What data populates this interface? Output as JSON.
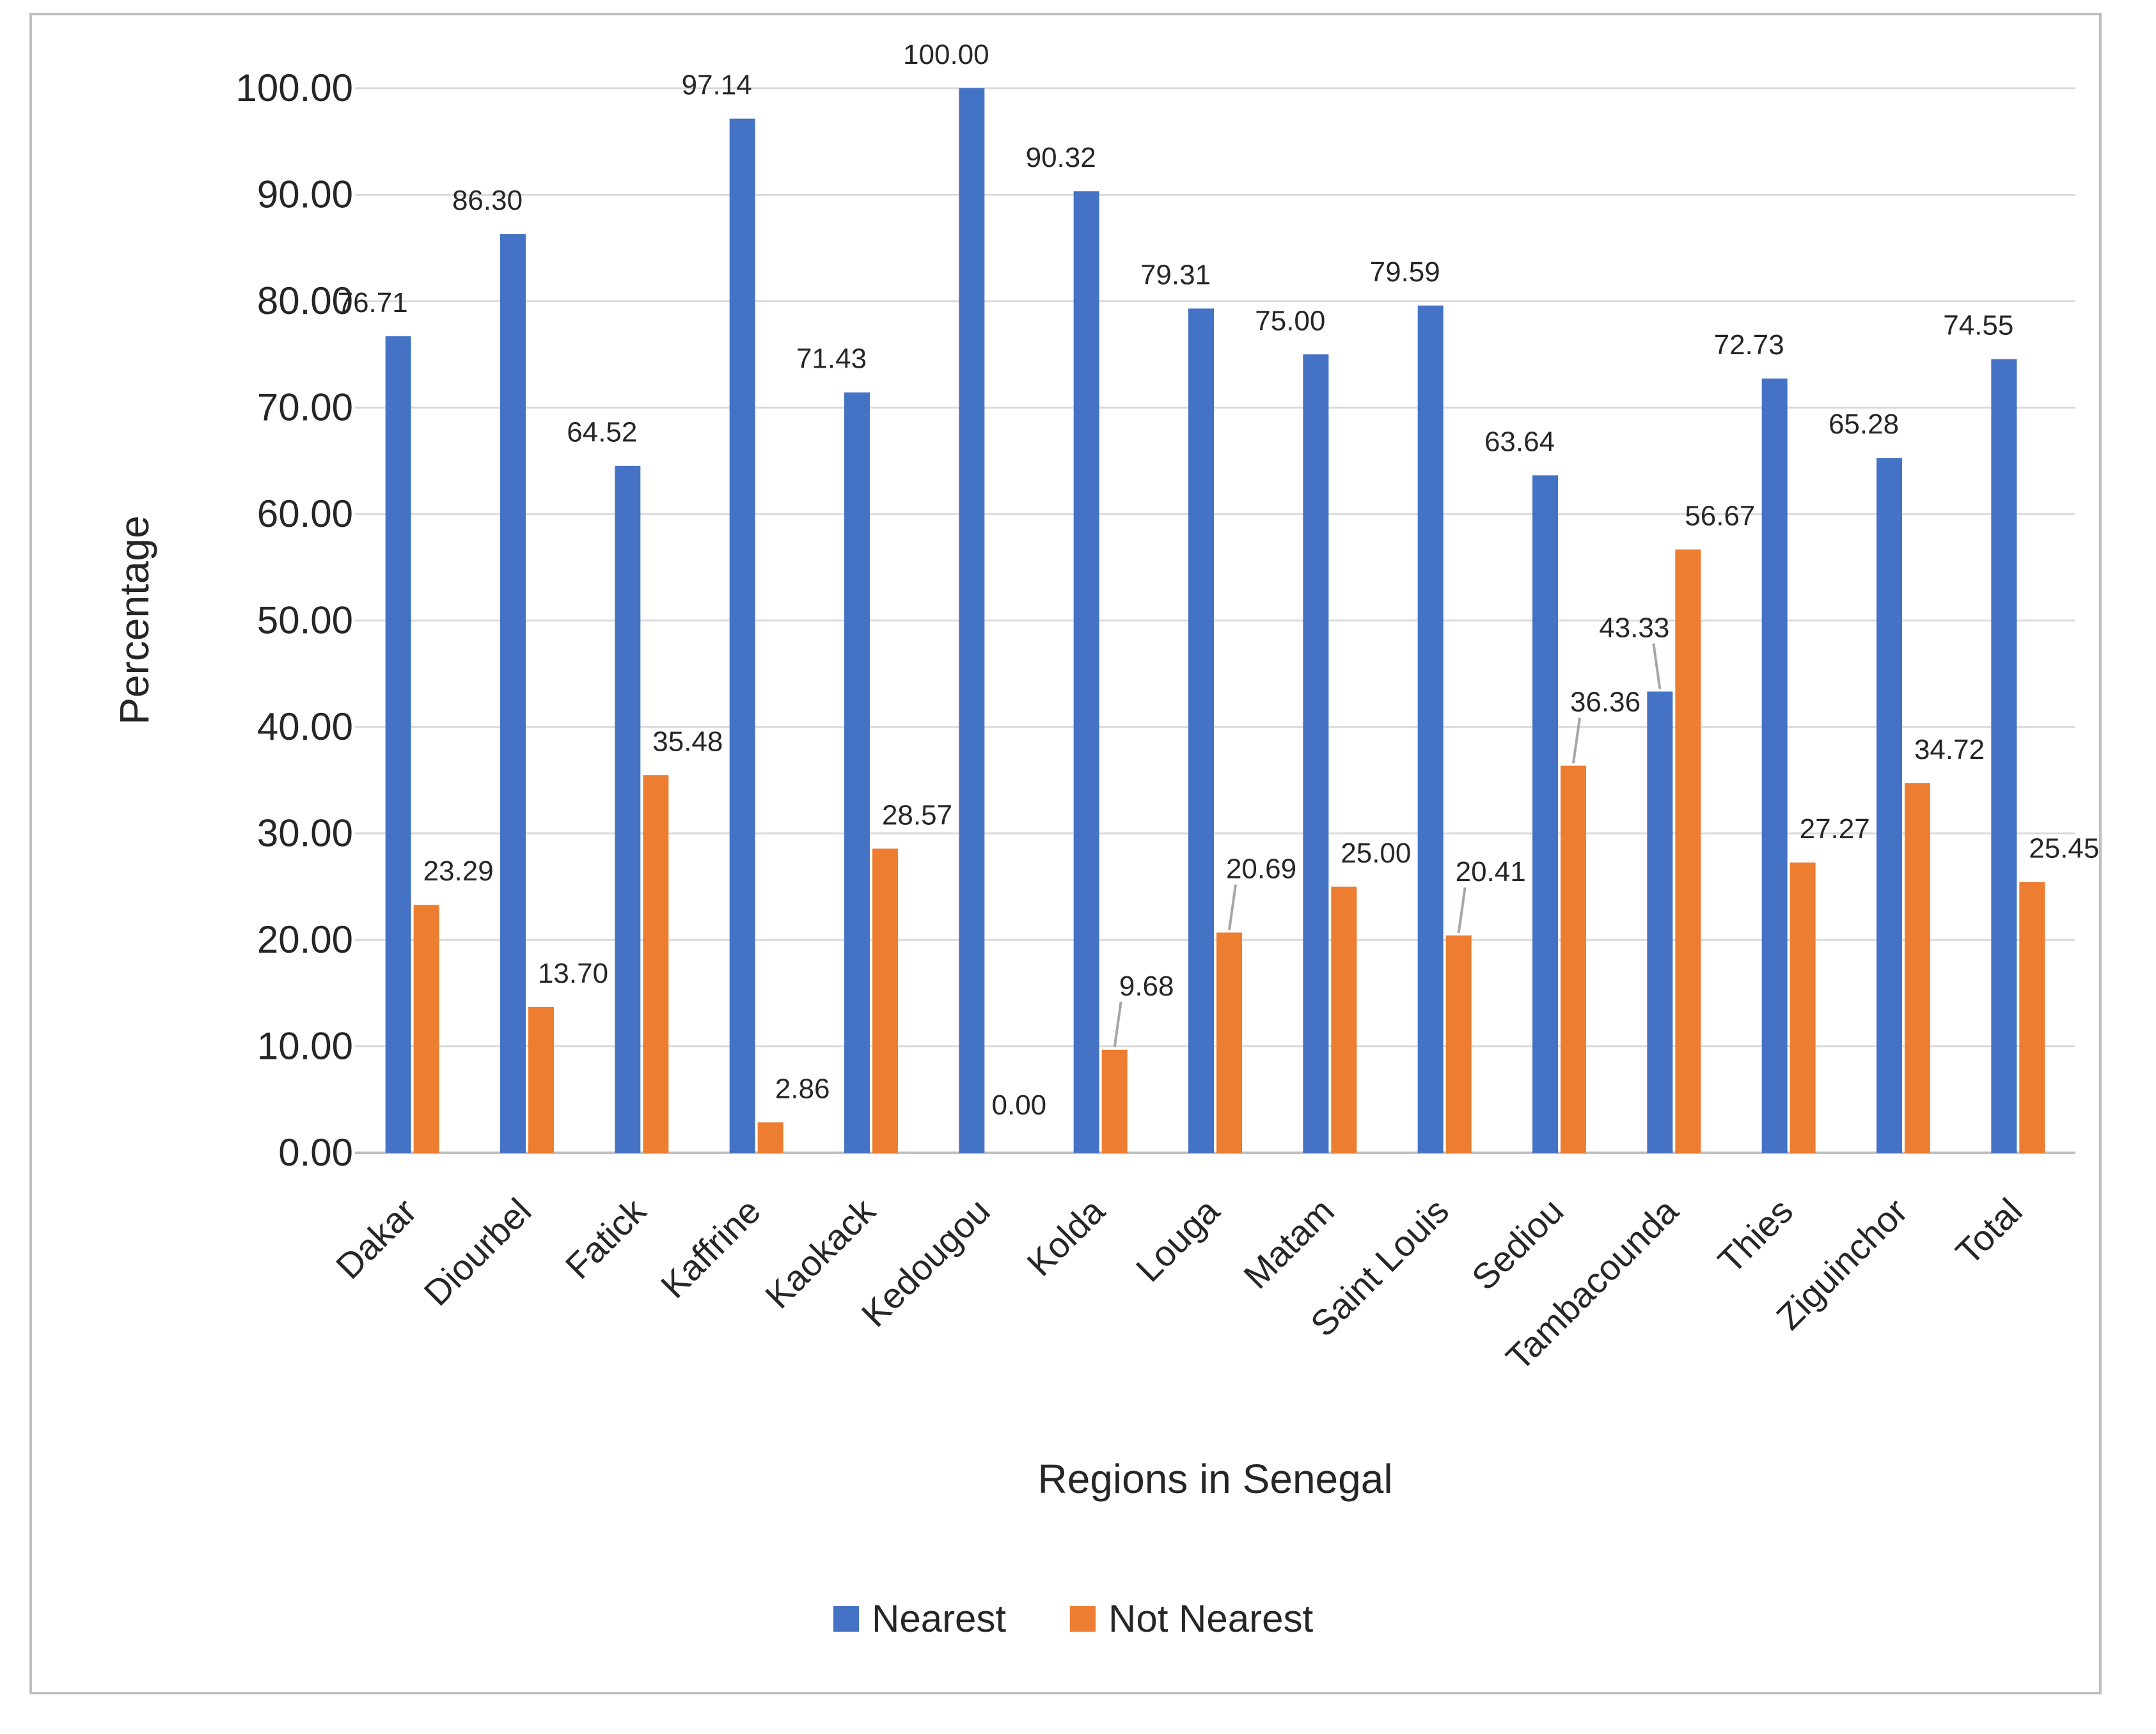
{
  "chart_data": {
    "type": "bar",
    "title": "",
    "xlabel": "Regions in Senegal",
    "ylabel": "Percentage",
    "ylim": [
      0,
      100
    ],
    "ytick_step": 10,
    "ytick_labels": [
      "0.00",
      "10.00",
      "20.00",
      "30.00",
      "40.00",
      "50.00",
      "60.00",
      "70.00",
      "80.00",
      "90.00",
      "100.00"
    ],
    "grid": true,
    "legend_position": "bottom",
    "categories": [
      "Dakar",
      "Diourbel",
      "Fatick",
      "Kaffrine",
      "Kaokack",
      "Kedougou",
      "Kolda",
      "Louga",
      "Matam",
      "Saint Louis",
      "Sediou",
      "Tambacounda",
      "Thies",
      "Ziguinchor",
      "Total"
    ],
    "series": [
      {
        "name": "Nearest",
        "color": "#4472C4",
        "values": [
          76.71,
          86.3,
          64.52,
          97.14,
          71.43,
          100.0,
          90.32,
          79.31,
          75.0,
          79.59,
          63.64,
          43.33,
          72.73,
          65.28,
          74.55
        ],
        "labels": [
          "76.71",
          "86.30",
          "64.52",
          "97.14",
          "71.43",
          "100.00",
          "90.32",
          "79.31",
          "75.00",
          "79.59",
          "63.64",
          "43.33",
          "72.73",
          "65.28",
          "74.55"
        ]
      },
      {
        "name": "Not Nearest",
        "color": "#ED7D31",
        "values": [
          23.29,
          13.7,
          35.48,
          2.86,
          28.57,
          0.0,
          9.68,
          20.69,
          25.0,
          20.41,
          36.36,
          56.67,
          27.27,
          34.72,
          25.45
        ],
        "labels": [
          "23.29",
          "13.70",
          "35.48",
          "2.86",
          "28.57",
          "0.00",
          "9.68",
          "20.69",
          "25.00",
          "20.41",
          "36.36",
          "56.67",
          "27.27",
          "34.72",
          "25.45"
        ]
      }
    ]
  }
}
